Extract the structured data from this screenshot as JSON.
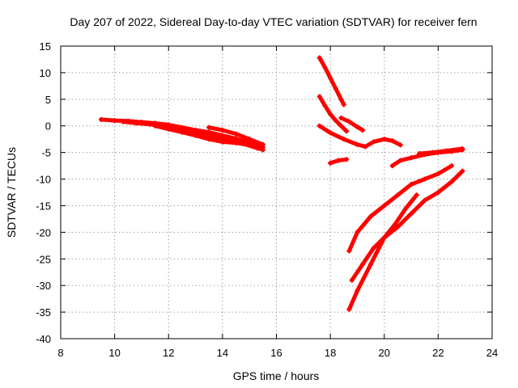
{
  "chart_data": {
    "type": "scatter",
    "title": "Day 207 of 2022, Sidereal Day-to-day VTEC variation (SDTVAR) for receiver fern",
    "xlabel": "GPS time / hours",
    "ylabel": "SDTVAR / TECUs",
    "xlim": [
      8,
      24
    ],
    "ylim": [
      -40,
      15
    ],
    "xticks": [
      8,
      10,
      12,
      14,
      16,
      18,
      20,
      22,
      24
    ],
    "yticks": [
      15,
      10,
      5,
      0,
      -5,
      -10,
      -15,
      -20,
      -25,
      -30,
      -35,
      -40
    ],
    "grid": true,
    "marker": "+",
    "series_color": "#ff0000",
    "series": [
      {
        "x": [
          9.5,
          10.0,
          10.5,
          11.0,
          11.5,
          12.0,
          12.5,
          13.0,
          13.5,
          14.0,
          14.5,
          15.0,
          15.5
        ],
        "y": [
          1.2,
          1.0,
          0.9,
          0.7,
          0.5,
          0.2,
          -0.3,
          -0.8,
          -1.2,
          -1.8,
          -2.4,
          -3.2,
          -4.0
        ]
      },
      {
        "x": [
          10.3,
          10.8,
          11.3,
          11.8,
          12.3,
          12.8,
          13.3,
          13.8,
          14.3,
          14.8,
          15.3
        ],
        "y": [
          0.8,
          0.5,
          0.3,
          0.0,
          -0.4,
          -1.0,
          -1.6,
          -2.2,
          -2.8,
          -3.4,
          -4.2
        ]
      },
      {
        "x": [
          11.5,
          12.0,
          12.5,
          13.0,
          13.5,
          14.0,
          14.5,
          15.0,
          15.5
        ],
        "y": [
          0.0,
          -0.6,
          -1.2,
          -1.8,
          -2.5,
          -3.0,
          -3.2,
          -3.6,
          -4.5
        ]
      },
      {
        "x": [
          13.5,
          14.0,
          14.5,
          15.0,
          15.5
        ],
        "y": [
          -0.3,
          -0.8,
          -1.5,
          -2.5,
          -3.5
        ]
      },
      {
        "x": [
          17.6,
          17.8,
          18.0,
          18.2,
          18.4,
          18.5
        ],
        "y": [
          12.8,
          11.0,
          9.0,
          7.0,
          5.0,
          4.0
        ]
      },
      {
        "x": [
          17.6,
          17.8,
          18.0,
          18.2,
          18.4,
          18.6
        ],
        "y": [
          5.5,
          3.8,
          2.2,
          1.0,
          0.0,
          -1.0
        ]
      },
      {
        "x": [
          18.4,
          18.7,
          19.0,
          19.2
        ],
        "y": [
          1.5,
          0.8,
          -0.2,
          -0.8
        ]
      },
      {
        "x": [
          17.6,
          18.0,
          18.5,
          19.0,
          19.3,
          19.6,
          20.0,
          20.3,
          20.6
        ],
        "y": [
          0.0,
          -1.3,
          -2.5,
          -3.5,
          -3.9,
          -3.0,
          -2.5,
          -2.8,
          -3.6
        ]
      },
      {
        "x": [
          18.0,
          18.3,
          18.6
        ],
        "y": [
          -7.0,
          -6.5,
          -6.3
        ]
      },
      {
        "x": [
          20.3,
          20.6,
          21.0,
          21.5,
          22.0,
          22.5,
          22.9
        ],
        "y": [
          -7.5,
          -6.5,
          -6.0,
          -5.4,
          -5.0,
          -4.8,
          -4.5
        ]
      },
      {
        "x": [
          21.3,
          21.8,
          22.3,
          22.9
        ],
        "y": [
          -5.2,
          -5.0,
          -4.7,
          -4.3
        ]
      },
      {
        "x": [
          18.7,
          19.0,
          19.5,
          20.0,
          20.5,
          21.0,
          21.5,
          22.0,
          22.5
        ],
        "y": [
          -23.5,
          -20.0,
          -17.0,
          -15.0,
          -13.0,
          -11.0,
          -10.0,
          -9.0,
          -7.5
        ]
      },
      {
        "x": [
          18.7,
          19.0,
          19.5,
          20.0,
          20.5,
          21.0,
          21.5,
          22.0,
          22.5,
          22.9
        ],
        "y": [
          -34.5,
          -31.0,
          -26.0,
          -21.0,
          -19.0,
          -16.5,
          -14.0,
          -12.5,
          -10.5,
          -8.5
        ]
      },
      {
        "x": [
          18.8,
          19.2,
          19.6,
          20.0,
          20.4,
          20.8,
          21.2
        ],
        "y": [
          -29.0,
          -26.0,
          -23.0,
          -21.0,
          -18.5,
          -15.5,
          -13.0
        ]
      }
    ]
  }
}
